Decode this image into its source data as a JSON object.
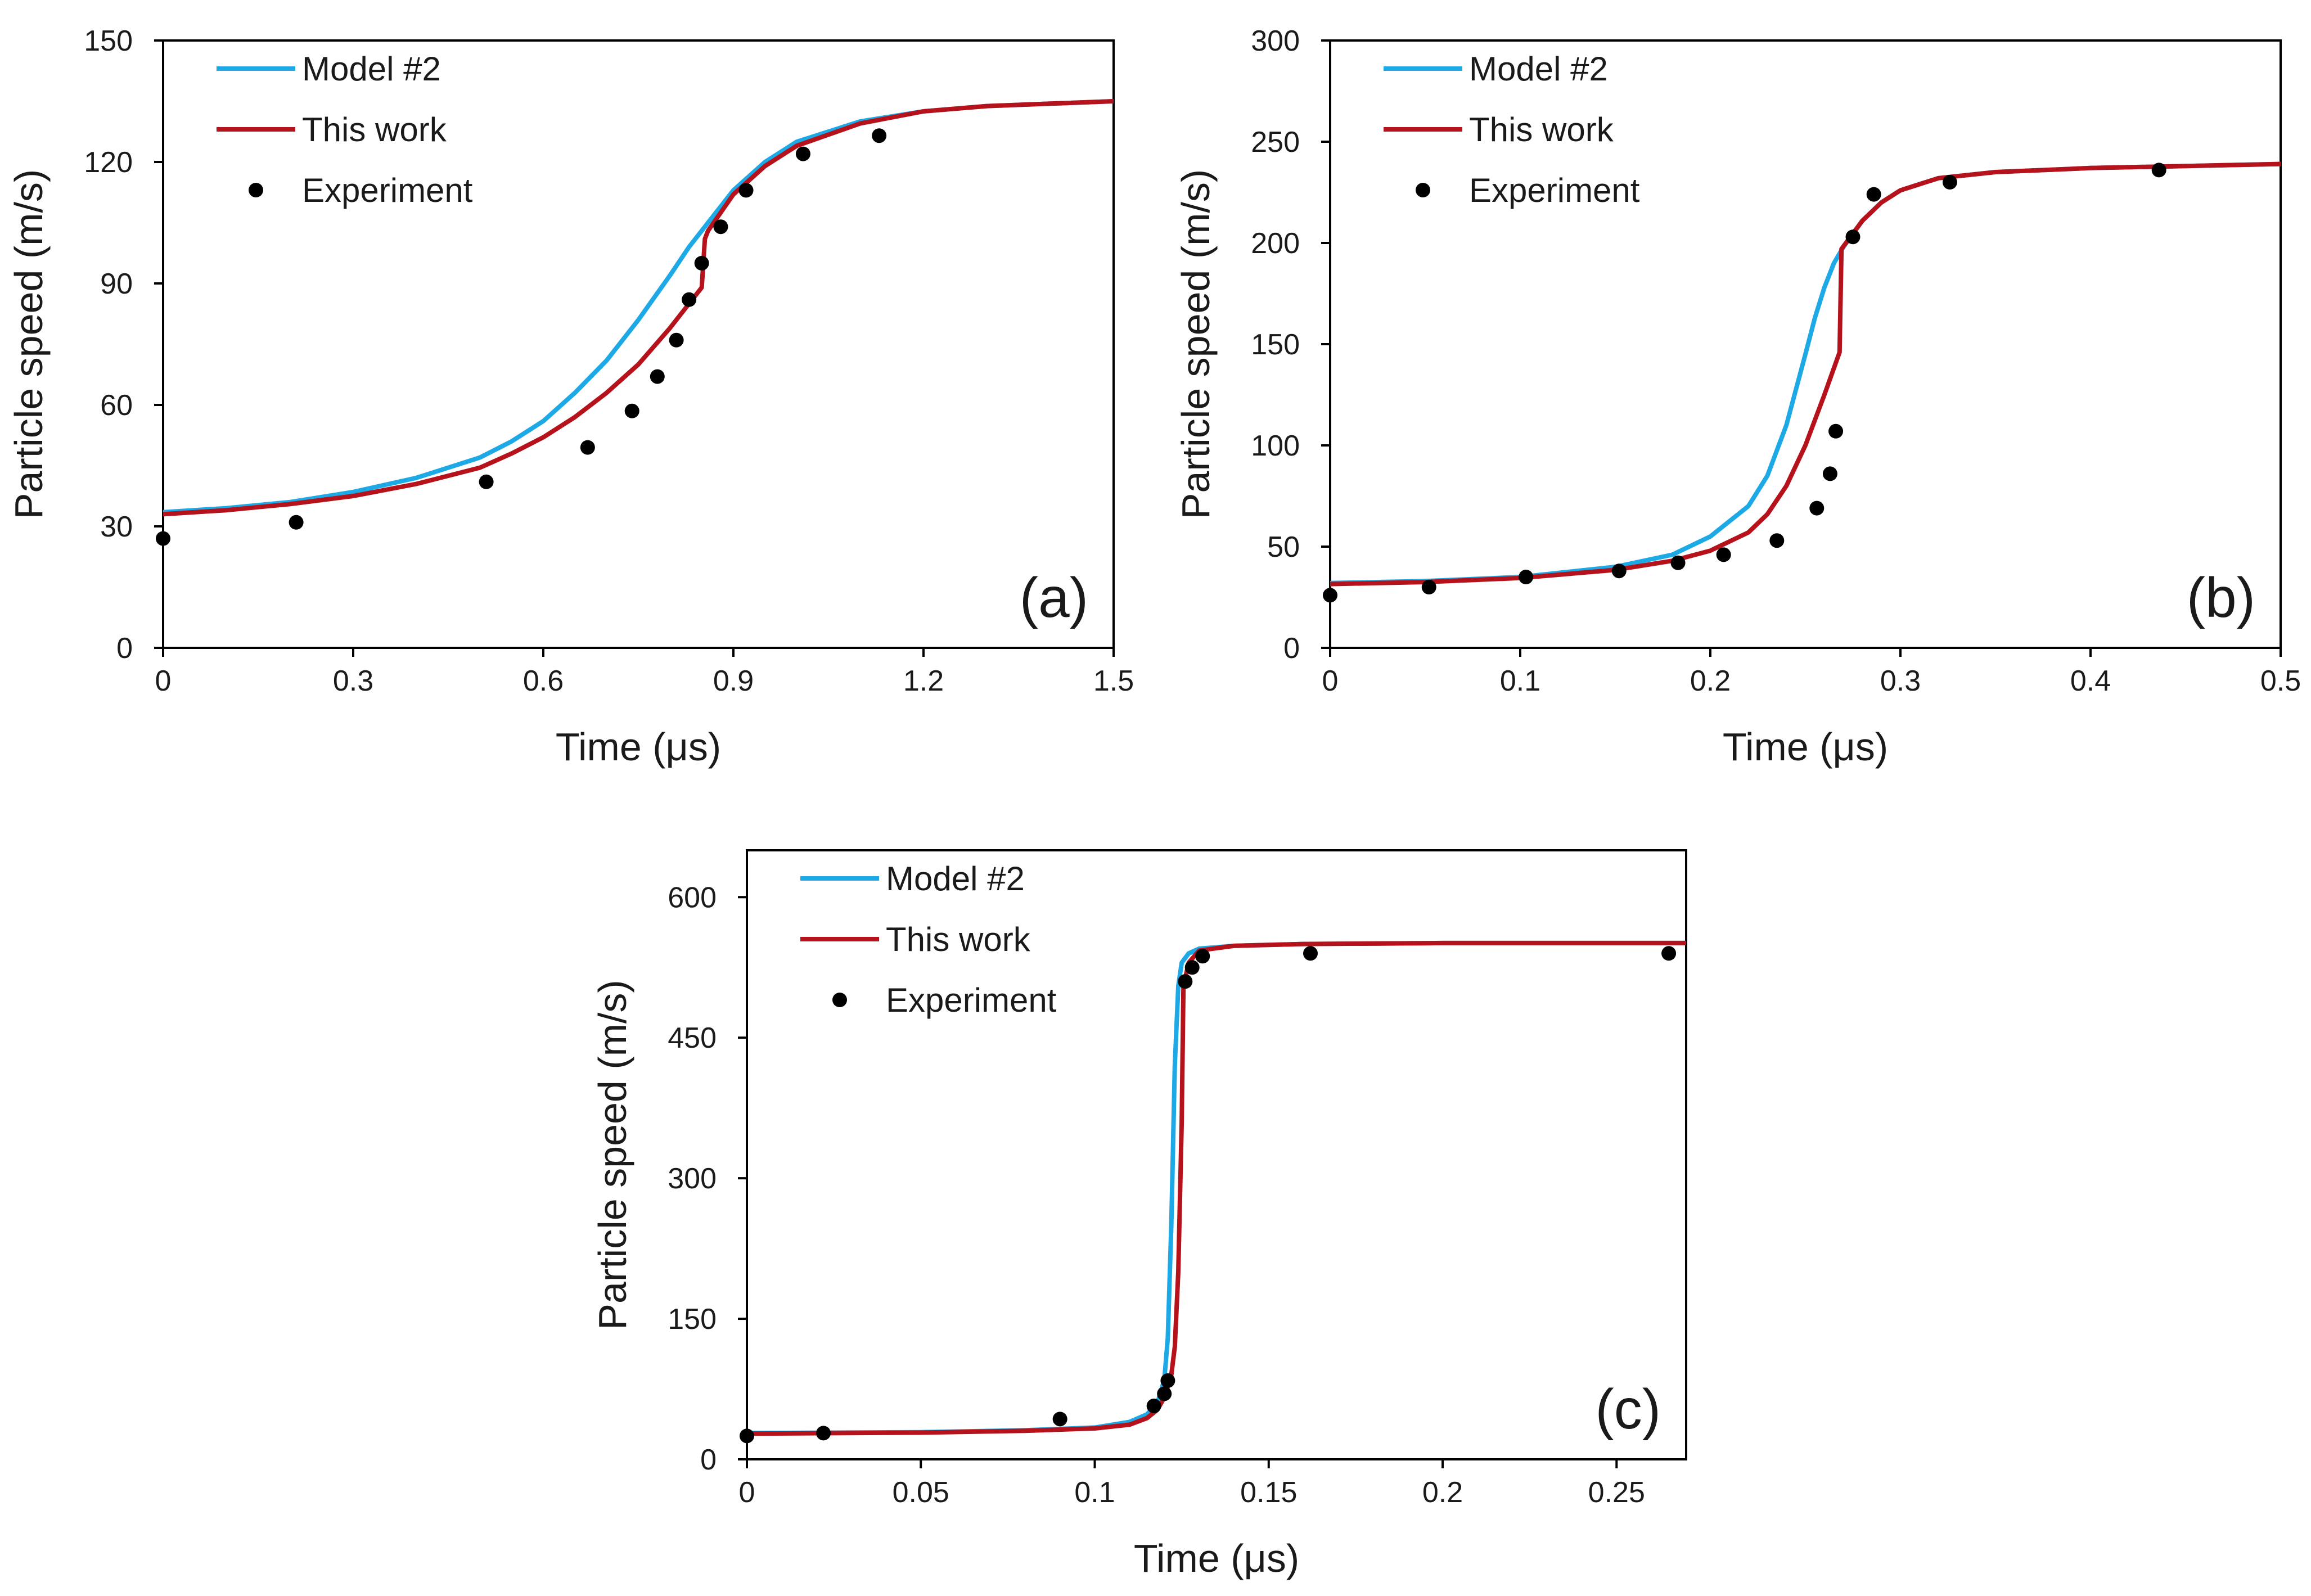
{
  "colors": {
    "model2": "#1CA9E6",
    "this_work": "#B5121B",
    "experiment": "#000000",
    "axis": "#000000"
  },
  "chart_data": [
    {
      "id": "a",
      "type": "line",
      "panel_label": "(a)",
      "xlabel": "Time (μs)",
      "ylabel": "Particle speed (m/s)",
      "xlim": [
        0,
        1.5
      ],
      "ylim": [
        0,
        150
      ],
      "xticks": [
        0,
        0.3,
        0.6,
        0.9,
        1.2,
        1.5
      ],
      "xtick_labels": [
        "0",
        "0.3",
        "0.6",
        "0.9",
        "1.2",
        "1.5"
      ],
      "yticks": [
        0,
        30,
        60,
        90,
        120,
        150
      ],
      "ytick_labels": [
        "0",
        "30",
        "60",
        "90",
        "120",
        "150"
      ],
      "legend": {
        "placement": "top-left",
        "entries": [
          "Model #2",
          "This work",
          "Experiment"
        ]
      },
      "series": [
        {
          "name": "Model #2",
          "kind": "line",
          "color_key": "model2",
          "x": [
            0,
            0.1,
            0.2,
            0.3,
            0.4,
            0.5,
            0.55,
            0.6,
            0.65,
            0.7,
            0.75,
            0.8,
            0.83,
            0.86,
            0.9,
            0.95,
            1.0,
            1.1,
            1.2,
            1.3,
            1.4,
            1.5
          ],
          "y": [
            33.5,
            34.5,
            36,
            38.5,
            42,
            47,
            51,
            56,
            63,
            71,
            81,
            92,
            99,
            105,
            113,
            120,
            125,
            130,
            132.5,
            133.8,
            134.4,
            135
          ]
        },
        {
          "name": "This work",
          "kind": "line",
          "color_key": "this_work",
          "x": [
            0,
            0.1,
            0.2,
            0.3,
            0.4,
            0.5,
            0.55,
            0.6,
            0.65,
            0.7,
            0.75,
            0.8,
            0.85,
            0.855,
            0.86,
            0.9,
            0.95,
            1.0,
            1.1,
            1.2,
            1.3,
            1.4,
            1.5
          ],
          "y": [
            33,
            34,
            35.5,
            37.5,
            40.5,
            44.5,
            48,
            52,
            57,
            63,
            70,
            79,
            89,
            101,
            103,
            112,
            119,
            124,
            129.5,
            132.5,
            133.8,
            134.4,
            135
          ]
        },
        {
          "name": "Experiment",
          "kind": "scatter",
          "color_key": "experiment",
          "x": [
            0.0,
            0.21,
            0.51,
            0.67,
            0.74,
            0.78,
            0.81,
            0.83,
            0.85,
            0.88,
            0.92,
            1.01,
            1.13
          ],
          "y": [
            27,
            31,
            41,
            49.5,
            58.5,
            67,
            76,
            86,
            95,
            104,
            113,
            122,
            126.5
          ]
        }
      ]
    },
    {
      "id": "b",
      "type": "line",
      "panel_label": "(b)",
      "xlabel": "Time (μs)",
      "ylabel": "Particle speed (m/s)",
      "xlim": [
        0,
        0.5
      ],
      "ylim": [
        0,
        300
      ],
      "xticks": [
        0,
        0.1,
        0.2,
        0.3,
        0.4,
        0.5
      ],
      "xtick_labels": [
        "0",
        "0.1",
        "0.2",
        "0.3",
        "0.4",
        "0.5"
      ],
      "yticks": [
        0,
        50,
        100,
        150,
        200,
        250,
        300
      ],
      "ytick_labels": [
        "0",
        "50",
        "100",
        "150",
        "200",
        "250",
        "300"
      ],
      "legend": {
        "placement": "top-left",
        "entries": [
          "Model #2",
          "This work",
          "Experiment"
        ]
      },
      "series": [
        {
          "name": "Model #2",
          "kind": "line",
          "color_key": "model2",
          "x": [
            0,
            0.05,
            0.1,
            0.15,
            0.18,
            0.2,
            0.22,
            0.23,
            0.24,
            0.25,
            0.255,
            0.26,
            0.265,
            0.27,
            0.28,
            0.29,
            0.3,
            0.32,
            0.35,
            0.4,
            0.45,
            0.5
          ],
          "y": [
            32,
            33,
            35,
            40,
            46,
            55,
            70,
            85,
            110,
            145,
            163,
            178,
            190,
            198,
            211,
            220,
            226,
            232,
            235,
            237,
            238,
            239
          ]
        },
        {
          "name": "This work",
          "kind": "line",
          "color_key": "this_work",
          "x": [
            0,
            0.05,
            0.1,
            0.15,
            0.18,
            0.2,
            0.22,
            0.23,
            0.24,
            0.25,
            0.26,
            0.268,
            0.269,
            0.28,
            0.29,
            0.3,
            0.32,
            0.35,
            0.4,
            0.45,
            0.5
          ],
          "y": [
            31.5,
            32.5,
            34.5,
            38.5,
            43,
            48,
            57,
            66,
            80,
            100,
            125,
            146,
            197,
            211,
            220,
            226,
            232,
            235,
            237,
            238,
            239
          ]
        },
        {
          "name": "Experiment",
          "kind": "scatter",
          "color_key": "experiment",
          "x": [
            0.0,
            0.052,
            0.103,
            0.152,
            0.183,
            0.207,
            0.235,
            0.256,
            0.263,
            0.266,
            0.275,
            0.286,
            0.326,
            0.436
          ],
          "y": [
            26,
            30,
            35,
            38,
            42,
            46,
            53,
            69,
            86,
            107,
            203,
            224,
            230,
            236
          ]
        }
      ]
    },
    {
      "id": "c",
      "type": "line",
      "panel_label": "(c)",
      "xlabel": "Time (μs)",
      "ylabel": "Particle speed (m/s)",
      "xlim": [
        0,
        0.27
      ],
      "ylim": [
        0,
        650
      ],
      "xticks": [
        0,
        0.05,
        0.1,
        0.15,
        0.2,
        0.25
      ],
      "xtick_labels": [
        "0",
        "0.05",
        "0.1",
        "0.15",
        "0.2",
        "0.25"
      ],
      "yticks": [
        0,
        150,
        300,
        450,
        600
      ],
      "ytick_labels": [
        "0",
        "150",
        "300",
        "450",
        "600"
      ],
      "legend": {
        "placement": "top-left",
        "entries": [
          "Model #2",
          "This work",
          "Experiment"
        ]
      },
      "series": [
        {
          "name": "Model #2",
          "kind": "line",
          "color_key": "model2",
          "x": [
            0,
            0.05,
            0.08,
            0.1,
            0.11,
            0.115,
            0.118,
            0.12,
            0.121,
            0.122,
            0.123,
            0.124,
            0.125,
            0.127,
            0.13,
            0.14,
            0.16,
            0.2,
            0.27
          ],
          "y": [
            28,
            29,
            31,
            34,
            40,
            48,
            60,
            85,
            130,
            250,
            420,
            505,
            530,
            540,
            545,
            548,
            550,
            551,
            551
          ]
        },
        {
          "name": "This work",
          "kind": "line",
          "color_key": "this_work",
          "x": [
            0,
            0.05,
            0.08,
            0.1,
            0.11,
            0.115,
            0.118,
            0.12,
            0.122,
            0.123,
            0.124,
            0.125,
            0.1255,
            0.127,
            0.13,
            0.14,
            0.16,
            0.2,
            0.27
          ],
          "y": [
            27.5,
            28.5,
            30.5,
            33,
            37,
            44,
            53,
            66,
            90,
            120,
            200,
            360,
            505,
            530,
            543,
            548,
            550,
            551,
            551
          ]
        },
        {
          "name": "Experiment",
          "kind": "scatter",
          "color_key": "experiment",
          "x": [
            0.0,
            0.022,
            0.09,
            0.117,
            0.12,
            0.121,
            0.126,
            0.128,
            0.131,
            0.162,
            0.265
          ],
          "y": [
            25,
            28,
            43,
            57,
            70,
            84,
            510,
            525,
            537,
            540,
            540
          ]
        }
      ]
    }
  ]
}
